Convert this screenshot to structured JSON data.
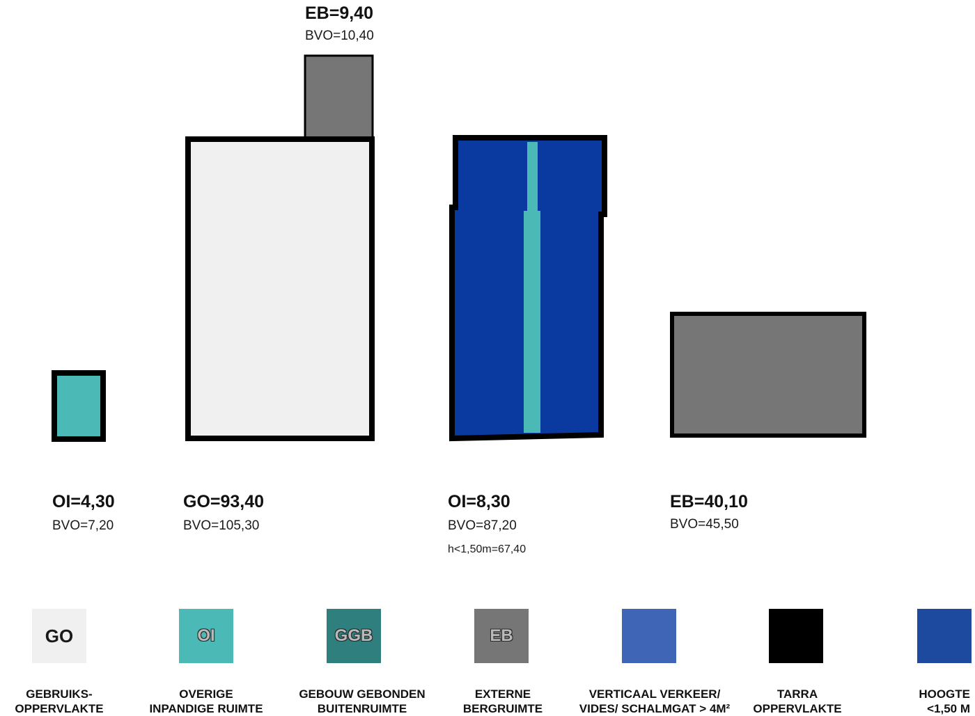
{
  "colors": {
    "go": "#f0f0f0",
    "oi": "#4bbab6",
    "ggb": "#2f7f7f",
    "eb": "#767676",
    "verticaal": "#3f65b6",
    "tarra": "#000000",
    "hoogte": "#1d4a9e",
    "room_blue": "#0a3aa0",
    "outline": "#000000"
  },
  "rooms": [
    {
      "id": "oi-small",
      "main": "OI=4,30",
      "sub": "BVO=7,20",
      "note": ""
    },
    {
      "id": "go-large",
      "main": "GO=93,40",
      "sub": "BVO=105,30",
      "note": ""
    },
    {
      "id": "eb-top",
      "main": "EB=9,40",
      "sub": "BVO=10,40",
      "note": ""
    },
    {
      "id": "blue-room",
      "main": "OI=8,30",
      "sub": "BVO=87,20",
      "note": "h<1,50m=67,40"
    },
    {
      "id": "eb-large",
      "main": "EB=40,10",
      "sub": "BVO=45,50",
      "note": ""
    }
  ],
  "legend": [
    {
      "code": "GO",
      "line1": "GEBRUIKS-",
      "line2": "OPPERVLAKTE",
      "color": "#f0f0f0",
      "icon": "go-swatch"
    },
    {
      "code": "OI",
      "line1": "OVERIGE",
      "line2": "INPANDIGE RUIMTE",
      "color": "#4bbab6",
      "icon": "oi-swatch"
    },
    {
      "code": "GGB",
      "line1": "GEBOUW GEBONDEN",
      "line2": "BUITENRUIMTE",
      "color": "#2f7f7f",
      "icon": "ggb-swatch"
    },
    {
      "code": "EB",
      "line1": "EXTERNE",
      "line2": "BERGRUIMTE",
      "color": "#767676",
      "icon": "eb-swatch"
    },
    {
      "code": "",
      "line1": "VERTICAAL VERKEER/",
      "line2": "VIDES/ SCHALMGAT > 4M²",
      "color": "#3f65b6",
      "icon": "verticaal-swatch"
    },
    {
      "code": "",
      "line1": "TARRA",
      "line2": "OPPERVLAKTE",
      "color": "#000000",
      "icon": "tarra-swatch"
    },
    {
      "code": "",
      "line1": "HOOGTE",
      "line2": "<1,50 M",
      "color": "#1d4a9e",
      "icon": "hoogte-swatch"
    }
  ]
}
